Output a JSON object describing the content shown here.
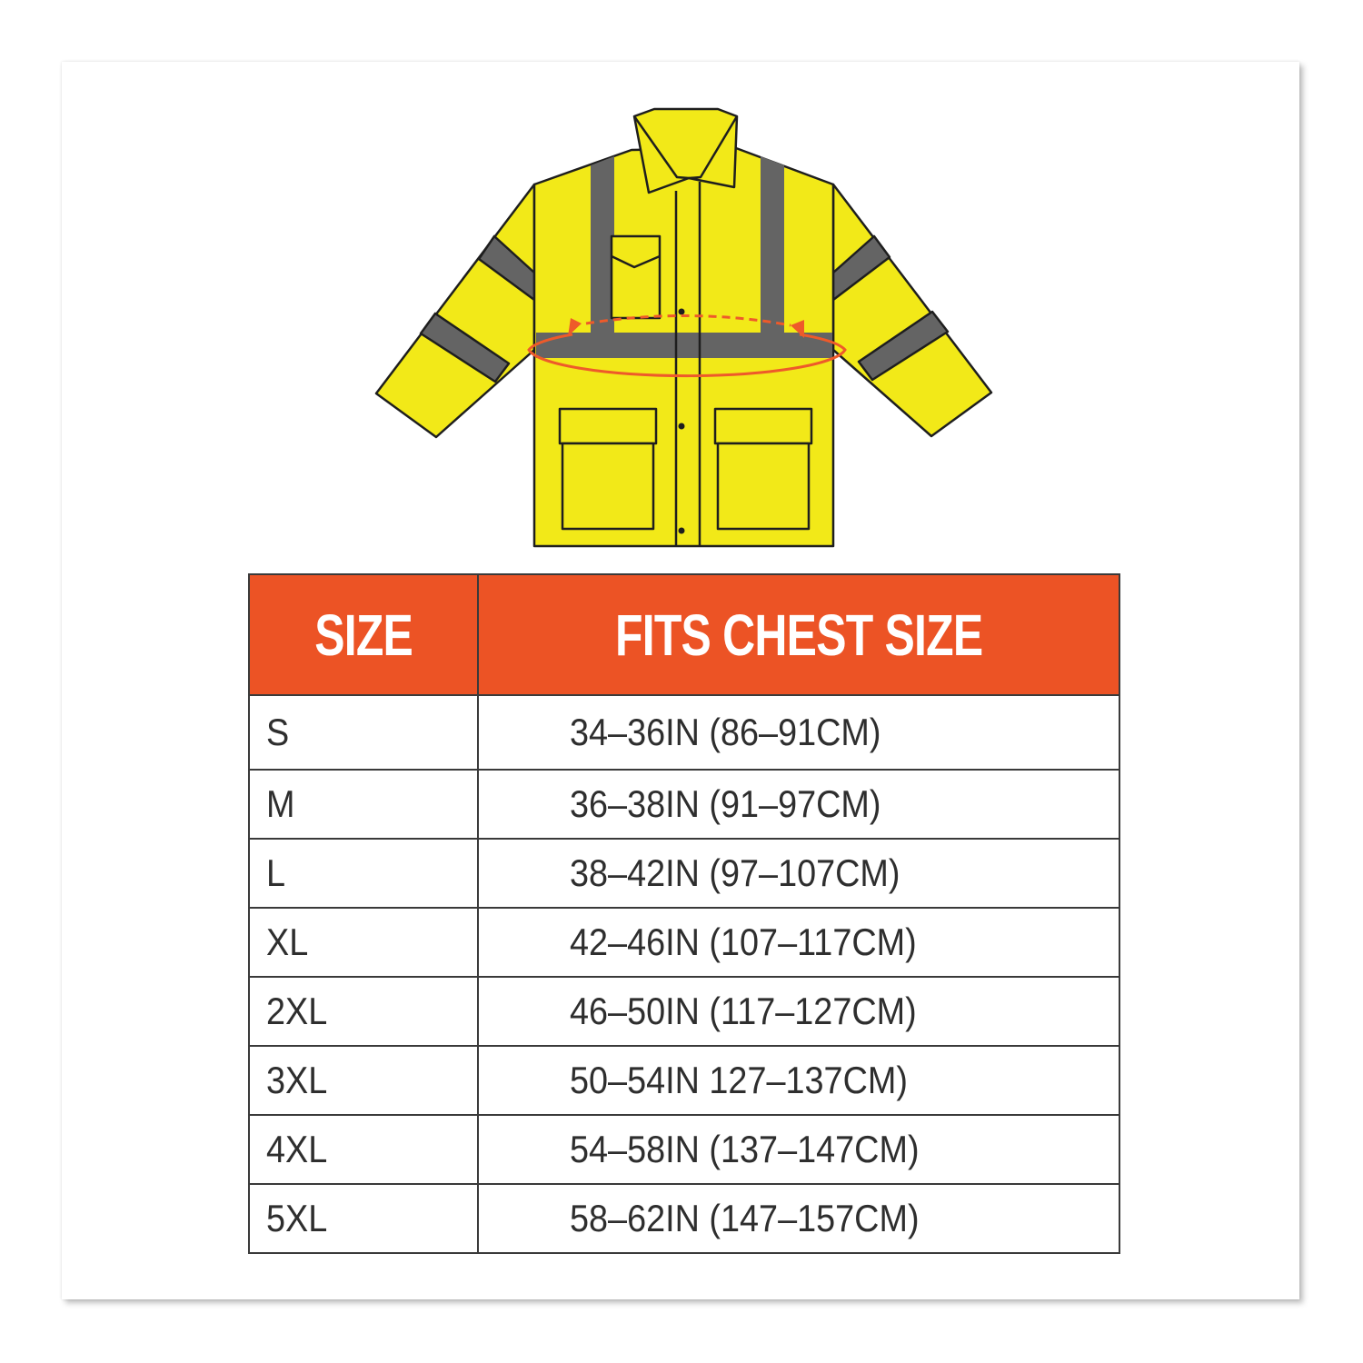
{
  "illustration": {
    "subject": "hi-vis jacket with chest measurement indicator",
    "colors": {
      "jacket": "#f2e918",
      "reflective": "#646464",
      "measure": "#ee5a2a"
    }
  },
  "table": {
    "header_color": "#ec5325",
    "headers": [
      "SIZE",
      "FITS CHEST SIZE"
    ],
    "rows": [
      {
        "size": "S",
        "chest": "34–36IN (86–91CM)"
      },
      {
        "size": "M",
        "chest": "36–38IN (91–97CM)"
      },
      {
        "size": "L",
        "chest": "38–42IN (97–107CM)"
      },
      {
        "size": "XL",
        "chest": "42–46IN (107–117CM)"
      },
      {
        "size": "2XL",
        "chest": "46–50IN (117–127CM)"
      },
      {
        "size": "3XL",
        "chest": "50–54IN 127–137CM)"
      },
      {
        "size": "4XL",
        "chest": "54–58IN (137–147CM)"
      },
      {
        "size": "5XL",
        "chest": "58–62IN (147–157CM)"
      }
    ]
  }
}
